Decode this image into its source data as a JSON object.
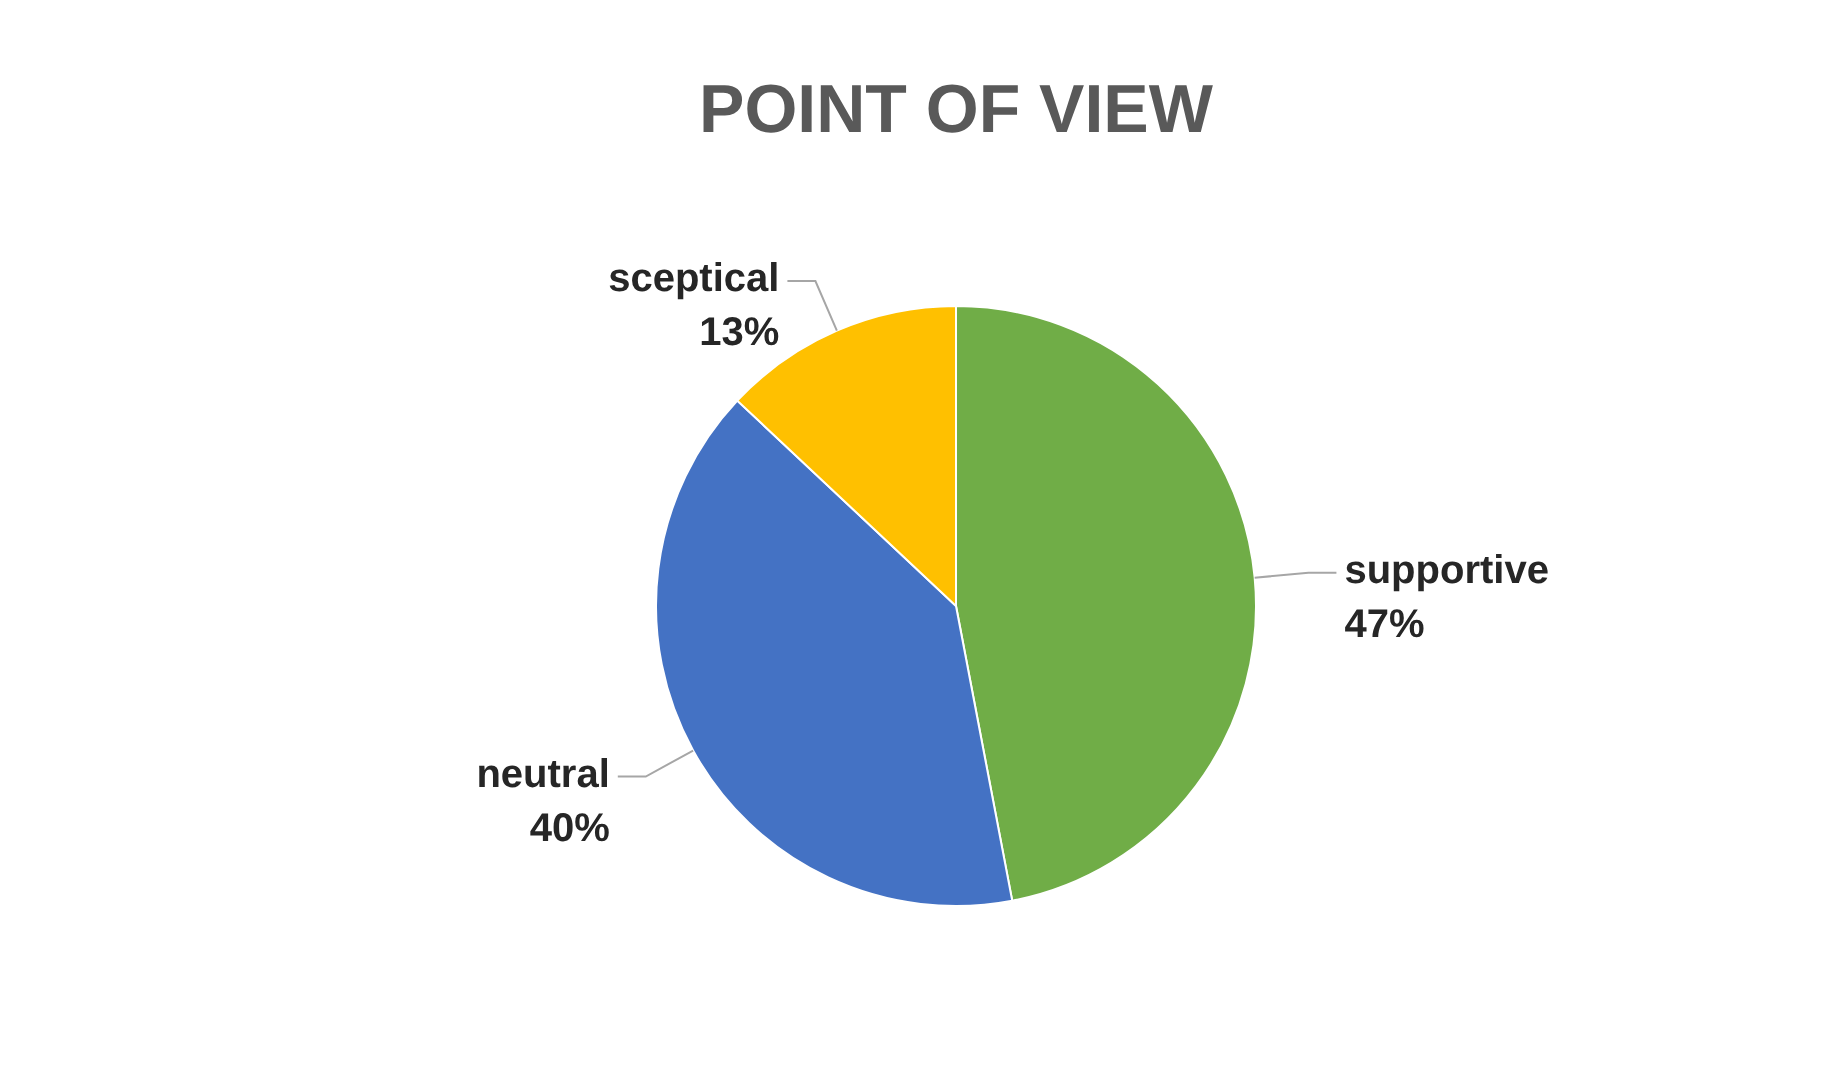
{
  "chart_data": {
    "type": "pie",
    "title": "POINT OF VIEW",
    "categories": [
      "supportive",
      "neutral",
      "sceptical"
    ],
    "values": [
      47,
      40,
      13
    ],
    "value_labels": [
      "47%",
      "40%",
      "13%"
    ],
    "colors": [
      "#70ad47",
      "#4472c4",
      "#ffc000"
    ]
  }
}
